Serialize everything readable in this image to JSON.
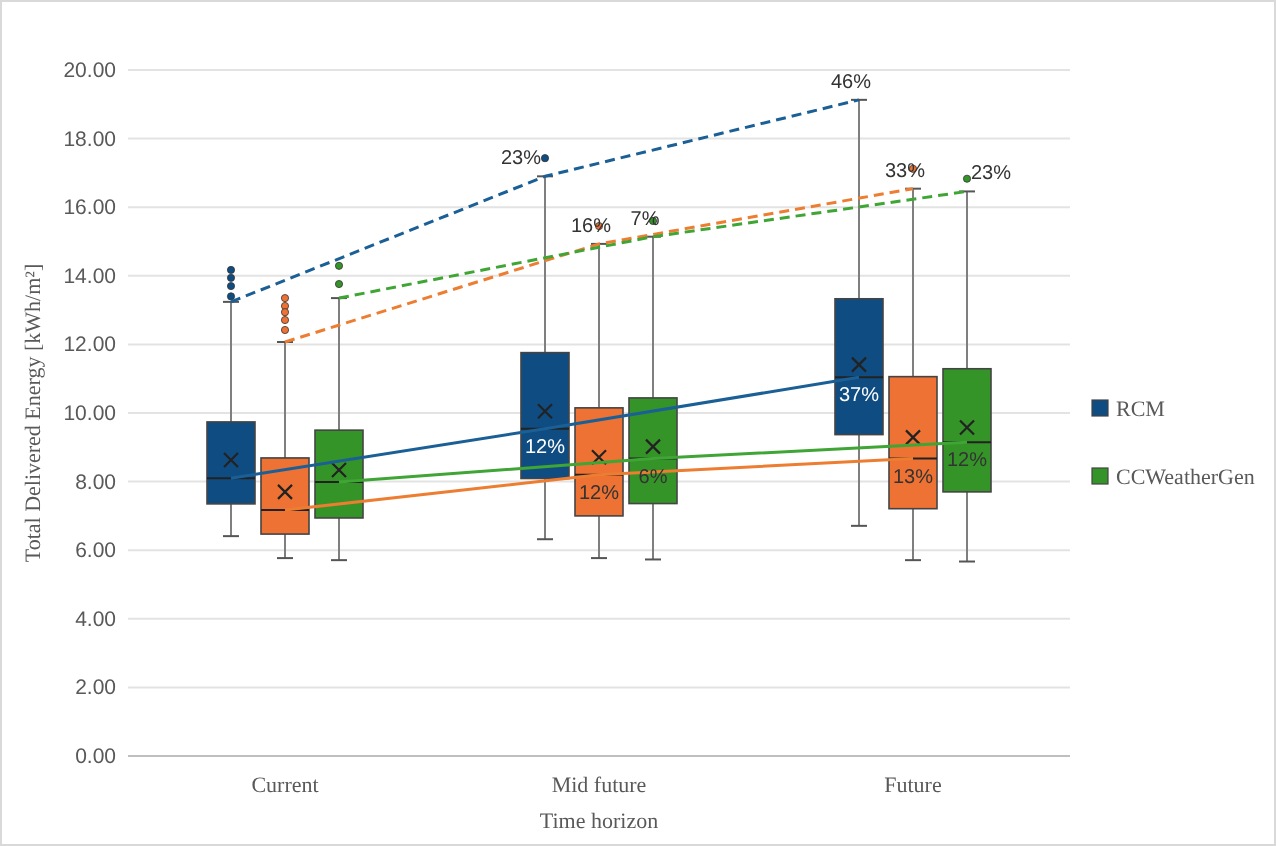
{
  "chart_data": {
    "type": "box",
    "xlabel": "Time horizon",
    "ylabel": "Total Delivered Energy [kWh/m²]",
    "categories": [
      "Current",
      "Mid future",
      "Future"
    ],
    "ylim": [
      0,
      20
    ],
    "yticks": [
      {
        "value": 0,
        "label": "0.00"
      },
      {
        "value": 2,
        "label": "2.00"
      },
      {
        "value": 4,
        "label": "4.00"
      },
      {
        "value": 6,
        "label": "6.00"
      },
      {
        "value": 8,
        "label": "8.00"
      },
      {
        "value": 10,
        "label": "10.00"
      },
      {
        "value": 12,
        "label": "12.00"
      },
      {
        "value": 14,
        "label": "14.00"
      },
      {
        "value": 16,
        "label": "16.00"
      },
      {
        "value": 18,
        "label": "18.00"
      },
      {
        "value": 20,
        "label": "20.00"
      }
    ],
    "grid": "y",
    "legend": "right",
    "series": [
      {
        "name": "RCM",
        "color": "#0f4c81",
        "boxes": [
          {
            "low": 6.41,
            "q1": 7.35,
            "median": 8.1,
            "q3": 9.74,
            "high": 13.24,
            "mean": 8.63,
            "outliers": [
              14.17,
              13.94,
              13.7,
              13.4
            ]
          },
          {
            "low": 6.32,
            "q1": 8.09,
            "median": 9.54,
            "q3": 11.76,
            "high": 16.9,
            "mean": 10.05,
            "outliers": [
              17.43
            ]
          },
          {
            "low": 6.71,
            "q1": 9.37,
            "median": 11.04,
            "q3": 13.33,
            "high": 19.13,
            "mean": 11.41
          }
        ]
      },
      {
        "color": "#ed7233",
        "boxes": [
          {
            "low": 5.77,
            "q1": 6.47,
            "median": 7.17,
            "q3": 8.69,
            "high": 12.07,
            "mean": 7.7,
            "outliers": [
              13.35,
              13.12,
              12.94,
              12.71,
              12.42
            ]
          },
          {
            "low": 5.77,
            "q1": 7.0,
            "median": 8.2,
            "q3": 10.15,
            "high": 14.93,
            "mean": 8.71,
            "outliers": [
              15.45
            ]
          },
          {
            "low": 5.71,
            "q1": 7.21,
            "median": 8.67,
            "q3": 11.06,
            "high": 16.54,
            "mean": 9.29,
            "outliers": [
              17.12
            ]
          }
        ]
      },
      {
        "name": "CCWeatherGen",
        "color": "#359428",
        "boxes": [
          {
            "low": 5.71,
            "q1": 6.94,
            "median": 7.99,
            "q3": 9.5,
            "high": 13.35,
            "mean": 8.34,
            "outliers": [
              14.29,
              13.76
            ]
          },
          {
            "low": 5.73,
            "q1": 7.36,
            "median": 8.67,
            "q3": 10.44,
            "high": 15.14,
            "mean": 9.02,
            "outliers": [
              15.6
            ]
          },
          {
            "low": 5.67,
            "q1": 7.7,
            "median": 9.15,
            "q3": 11.29,
            "high": 16.46,
            "mean": 9.58,
            "outliers": [
              16.83
            ]
          }
        ]
      },
      {
        "type": "line",
        "color": "#1a5f95",
        "line_style": "solid",
        "x": [
          "Current",
          "Mid future",
          "Future"
        ],
        "values": [
          8.1,
          9.54,
          11.04
        ]
      },
      {
        "type": "line",
        "color": "#ed7d31",
        "line_style": "solid",
        "x": [
          "Current",
          "Mid future",
          "Future"
        ],
        "values": [
          7.17,
          8.2,
          8.67
        ]
      },
      {
        "type": "line",
        "color": "#3fa535",
        "line_style": "solid",
        "x": [
          "Current",
          "Mid future",
          "Future"
        ],
        "values": [
          7.99,
          8.67,
          9.15
        ]
      },
      {
        "type": "line",
        "color": "#1a5f95",
        "line_style": "dashed",
        "x": [
          "Current",
          "Mid future",
          "Future"
        ],
        "values": [
          13.24,
          16.9,
          19.13
        ]
      },
      {
        "type": "line",
        "color": "#ed7d31",
        "line_style": "dashed",
        "x": [
          "Current",
          "Mid future",
          "Future"
        ],
        "values": [
          12.07,
          14.93,
          16.54
        ]
      },
      {
        "type": "line",
        "color": "#3fa535",
        "line_style": "dashed",
        "x": [
          "Current",
          "Mid future",
          "Future"
        ],
        "values": [
          13.35,
          15.14,
          16.46
        ]
      }
    ],
    "annotations": [
      "23%",
      "46%",
      "16%",
      "33%",
      "7%",
      "23%",
      "12%",
      "37%",
      "12%",
      "13%",
      "6%",
      "12%"
    ]
  }
}
